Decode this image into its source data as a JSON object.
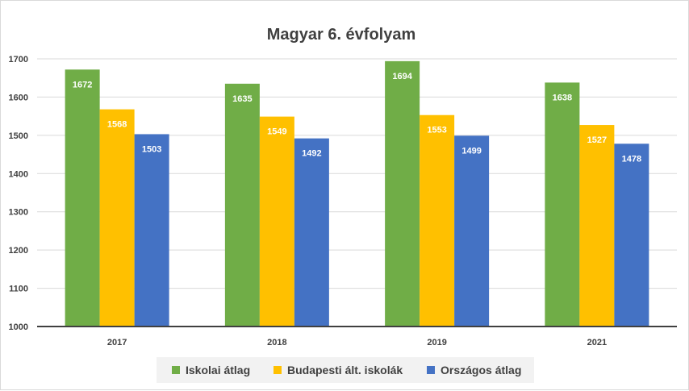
{
  "chart_data": {
    "type": "bar",
    "title": "Magyar 6. évfolyam",
    "categories": [
      "2017",
      "2018",
      "2019",
      "2021"
    ],
    "series": [
      {
        "name": "Iskolai átlag",
        "color": "#70ad47",
        "values": [
          1672,
          1635,
          1694,
          1638
        ]
      },
      {
        "name": "Budapesti ált. iskolák",
        "color": "#ffc000",
        "values": [
          1568,
          1549,
          1553,
          1527
        ]
      },
      {
        "name": "Országos átlag",
        "color": "#4472c4",
        "values": [
          1503,
          1492,
          1499,
          1478
        ]
      }
    ],
    "ylim": [
      1000,
      1700
    ],
    "yticks": [
      1000,
      1100,
      1200,
      1300,
      1400,
      1500,
      1600,
      1700
    ],
    "grid": true,
    "legend_position": "bottom"
  }
}
